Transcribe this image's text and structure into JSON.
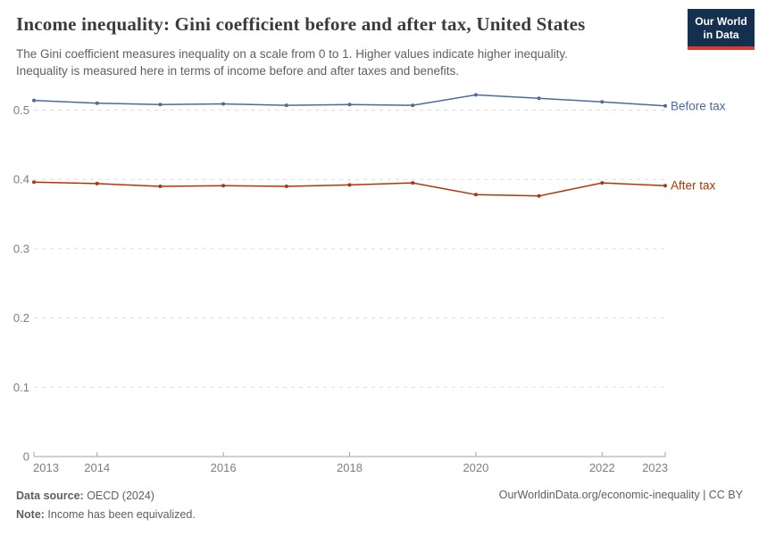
{
  "header": {
    "title": "Income inequality: Gini coefficient before and after tax, United States",
    "subtitle_line1": "The Gini coefficient measures inequality on a scale from 0 to 1. Higher values indicate higher inequality.",
    "subtitle_line2": "Inequality is measured here in terms of income before and after taxes and benefits.",
    "logo_line1": "Our World",
    "logo_line2": "in Data",
    "logo_bg_color": "#15304e",
    "logo_accent_color": "#dc3b2f"
  },
  "chart_data": {
    "type": "line",
    "title": "Income inequality: Gini coefficient before and after tax, United States",
    "x": [
      2013,
      2014,
      2015,
      2016,
      2017,
      2018,
      2019,
      2020,
      2021,
      2022,
      2023
    ],
    "series": [
      {
        "name": "Before tax",
        "color": "#4C6A9C",
        "values": [
          0.514,
          0.51,
          0.508,
          0.509,
          0.507,
          0.508,
          0.507,
          0.522,
          0.517,
          0.512,
          0.506
        ]
      },
      {
        "name": "After tax",
        "color": "#B13507",
        "values": [
          0.396,
          0.394,
          0.39,
          0.391,
          0.39,
          0.392,
          0.395,
          0.378,
          0.376,
          0.395,
          0.391
        ]
      }
    ],
    "xlabel": "",
    "ylabel": "",
    "xticks": [
      2013,
      2014,
      2016,
      2018,
      2020,
      2022,
      2023
    ],
    "yticks": [
      0,
      0.1,
      0.2,
      0.3,
      0.4,
      0.5
    ],
    "ylim": [
      0,
      0.54
    ],
    "xlim": [
      2013,
      2023
    ],
    "grid": "horizontal-dashed",
    "legend_position": "line-end-labels"
  },
  "footer": {
    "source_label": "Data source:",
    "source_value": " OECD (2024)",
    "note_label": "Note:",
    "note_value": " Income has been equivalized.",
    "attribution": "OurWorldinData.org/economic-inequality | CC BY"
  }
}
